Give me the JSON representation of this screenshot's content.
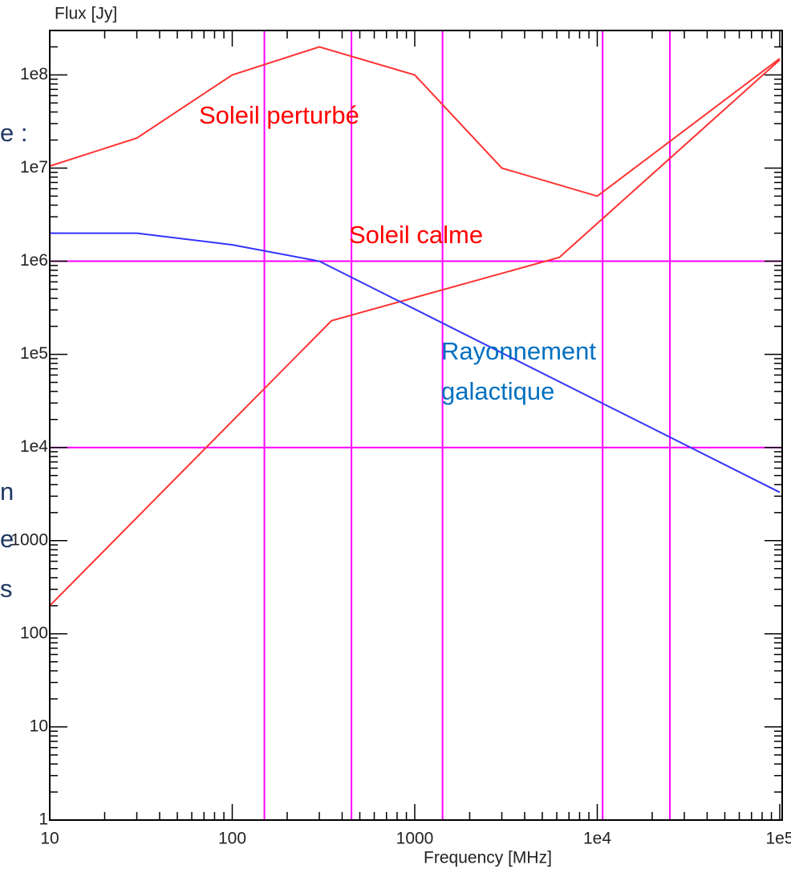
{
  "chart_data": {
    "type": "line",
    "y_label": "Flux [Jy]",
    "x_label": "Frequency [MHz]",
    "log_x": true,
    "log_y": true,
    "xlim": [
      10,
      100000
    ],
    "ylim": [
      1,
      300000000
    ],
    "xticks": [
      10,
      100,
      1000,
      {
        "value": 10000,
        "label": "1e4"
      },
      {
        "value": 100000,
        "label": "1e5"
      }
    ],
    "yticks": [
      1,
      10,
      100,
      1000,
      {
        "value": 10000,
        "label": "1e4"
      },
      {
        "value": 100000,
        "label": "1e5"
      },
      {
        "value": 1000000,
        "label": "1e6"
      },
      {
        "value": 10000000,
        "label": "1e7"
      },
      {
        "value": 100000000,
        "label": "1e8"
      }
    ],
    "minor_ticks": true,
    "ref_color": "#ff00ff",
    "vlines": [
      150,
      450,
      1420,
      10700,
      25000
    ],
    "hlines": [
      10000,
      1000000
    ],
    "series": [
      {
        "color": "#ff3333",
        "x": [
          10,
          30,
          100,
          300,
          1000,
          3000,
          10000,
          100000
        ],
        "values": [
          10500000,
          21000000,
          100000000,
          200000000,
          100000000,
          10000000,
          5000000,
          150000000
        ]
      },
      {
        "color": "#ff3333",
        "x": [
          10,
          350,
          6200,
          100000
        ],
        "values": [
          200,
          230000,
          1100000,
          145000000
        ]
      },
      {
        "color": "#3333ff",
        "x": [
          10,
          30,
          100,
          300,
          100000
        ],
        "values": [
          2000000,
          2000000,
          1500000,
          1000000,
          3300
        ]
      }
    ],
    "annotations": [
      {
        "lines": [
          "Soleil perturbé"
        ],
        "color": "#ff0000"
      },
      {
        "lines": [
          "Soleil calme"
        ],
        "color": "#ff0000"
      },
      {
        "lines": [
          "Rayonnement",
          "galactique"
        ],
        "color": "#0070c0"
      }
    ],
    "background_fragments": [
      "e :",
      "n",
      "e",
      "s"
    ]
  }
}
